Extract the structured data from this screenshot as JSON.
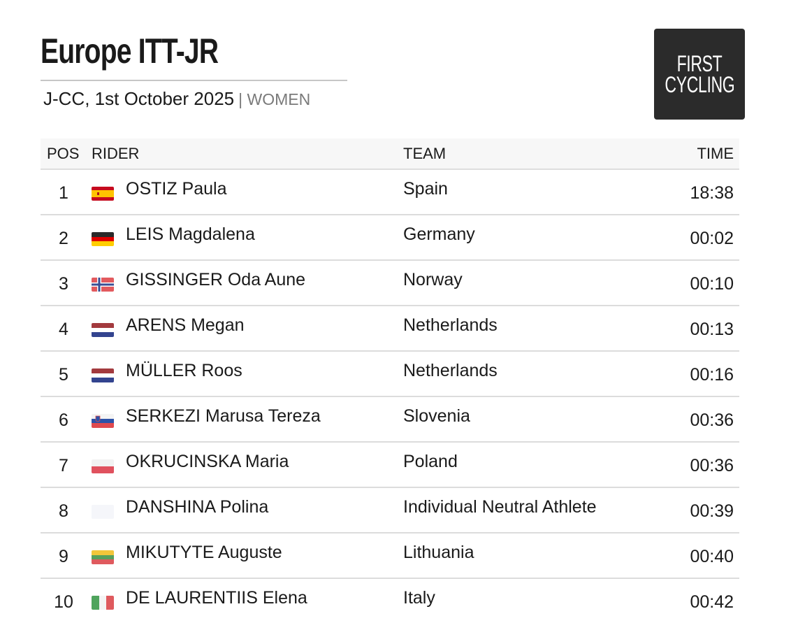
{
  "header": {
    "title": "Europe ITT-JR",
    "subtitle": "J-CC, 1st October 2025",
    "category": "| WOMEN"
  },
  "logo": {
    "line1": "FIRST",
    "line2": "CYCLING",
    "background": "#2b2b2b"
  },
  "table": {
    "headers": {
      "pos": "POS",
      "rider": "RIDER",
      "team": "TEAM",
      "time": "TIME"
    },
    "rows": [
      {
        "pos": "1",
        "rider": "OSTIZ Paula",
        "team": "Spain",
        "time": "18:38",
        "flag": "spain-flag-icon"
      },
      {
        "pos": "2",
        "rider": "LEIS Magdalena",
        "team": "Germany",
        "time": "00:02",
        "flag": "germany-flag-icon"
      },
      {
        "pos": "3",
        "rider": "GISSINGER Oda Aune",
        "team": "Norway",
        "time": "00:10",
        "flag": "norway-flag-icon"
      },
      {
        "pos": "4",
        "rider": "ARENS Megan",
        "team": "Netherlands",
        "time": "00:13",
        "flag": "netherlands-flag-icon"
      },
      {
        "pos": "5",
        "rider": "MÜLLER Roos",
        "team": "Netherlands",
        "time": "00:16",
        "flag": "netherlands-flag-icon"
      },
      {
        "pos": "6",
        "rider": "SERKEZI Marusa Tereza",
        "team": "Slovenia",
        "time": "00:36",
        "flag": "slovenia-flag-icon"
      },
      {
        "pos": "7",
        "rider": "OKRUCINSKA Maria",
        "team": "Poland",
        "time": "00:36",
        "flag": "poland-flag-icon"
      },
      {
        "pos": "8",
        "rider": "DANSHINA Polina",
        "team": "Individual Neutral Athlete",
        "time": "00:39",
        "flag": "neutral-flag-icon"
      },
      {
        "pos": "9",
        "rider": "MIKUTYTE Auguste",
        "team": "Lithuania",
        "time": "00:40",
        "flag": "lithuania-flag-icon"
      },
      {
        "pos": "10",
        "rider": "DE LAURENTIIS Elena",
        "team": "Italy",
        "time": "00:42",
        "flag": "italy-flag-icon"
      }
    ]
  }
}
